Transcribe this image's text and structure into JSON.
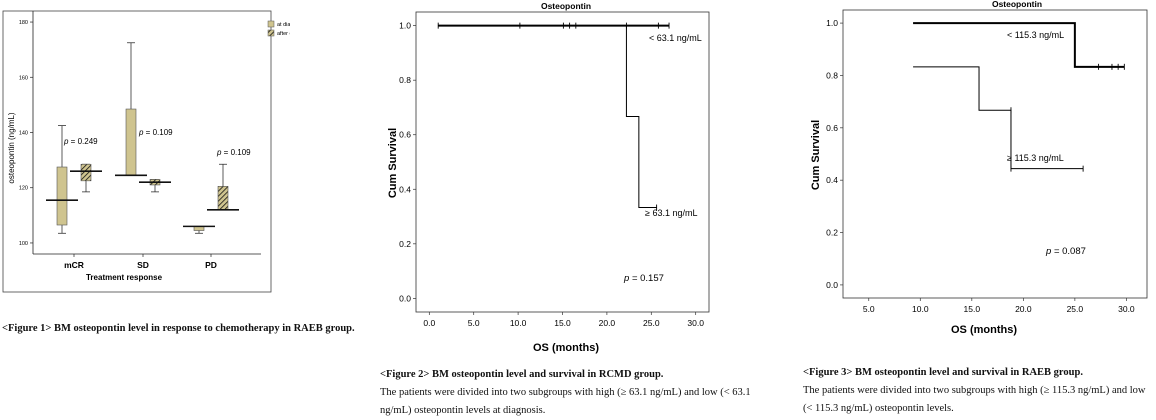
{
  "chart_data": [
    {
      "type": "box",
      "title": "",
      "xlabel": "Treatment response",
      "ylabel": "osteopontin (ng/mL)",
      "ylim": [
        96,
        184
      ],
      "yticks": [
        100,
        120,
        140,
        160,
        180
      ],
      "categories": [
        "mCR",
        "SD",
        "PD"
      ],
      "legend": {
        "placement": "top-right",
        "entries": [
          "at diagnosis",
          "after chemotherapy"
        ]
      },
      "series": [
        {
          "name": "at diagnosis",
          "color": "#cfc48f",
          "boxes": [
            {
              "min": 103.5,
              "q1": 106.5,
              "median": 115.5,
              "q3": 127.5,
              "max": 142.5
            },
            {
              "min": 124.5,
              "q1": 124.5,
              "median": 124.5,
              "q3": 148.5,
              "max": 172.5
            },
            {
              "min": 103.5,
              "q1": 104.5,
              "median": 106.0,
              "q3": 106.0,
              "max": 106.0
            }
          ]
        },
        {
          "name": "after chemotherapy",
          "color": "#cfc48f",
          "boxes": [
            {
              "min": 118.5,
              "q1": 122.5,
              "median": 126.0,
              "q3": 128.5,
              "max": 128.5
            },
            {
              "min": 118.5,
              "q1": 121.0,
              "median": 122.0,
              "q3": 123.0,
              "max": 123.0
            },
            {
              "min": 112.0,
              "q1": 112.0,
              "median": 112.0,
              "q3": 120.5,
              "max": 128.5
            }
          ]
        }
      ],
      "pvalues": [
        {
          "category": "mCR",
          "value": "= 0.249"
        },
        {
          "category": "SD",
          "value": "= 0.109"
        },
        {
          "category": "PD",
          "value": "= 0.109"
        }
      ]
    },
    {
      "type": "step",
      "title": "Osteopontin",
      "xlabel": "OS (months)",
      "ylabel": "Cum Survival",
      "xlim": [
        -1.5,
        31.5
      ],
      "ylim": [
        -0.05,
        1.05
      ],
      "xticks": [
        "0.0",
        "5.0",
        "10.0",
        "15.0",
        "20.0",
        "25.0",
        "30.0"
      ],
      "yticks": [
        "0.0",
        "0.2",
        "0.4",
        "0.6",
        "0.8",
        "1.0"
      ],
      "series": [
        {
          "name": "< 63.1 ng/mL",
          "line_width": 2,
          "steps": [
            [
              1.0,
              1.0
            ],
            [
              27.0,
              1.0
            ]
          ],
          "censored": [
            [
              1.0,
              1.0
            ],
            [
              10.2,
              1.0
            ],
            [
              15.1,
              1.0
            ],
            [
              15.8,
              1.0
            ],
            [
              16.5,
              1.0
            ],
            [
              22.2,
              1.0
            ],
            [
              25.8,
              1.0
            ],
            [
              27.0,
              1.0
            ]
          ]
        },
        {
          "name": "≥ 63.1 ng/mL",
          "line_width": 1,
          "steps": [
            [
              22.2,
              1.0
            ],
            [
              22.2,
              0.667
            ],
            [
              23.6,
              0.667
            ],
            [
              23.6,
              0.333
            ],
            [
              25.6,
              0.333
            ]
          ],
          "censored": [
            [
              25.6,
              0.333
            ]
          ]
        }
      ],
      "pvalue": "= 0.157"
    },
    {
      "type": "step",
      "title": "Osteopontin",
      "xlabel": "OS (months)",
      "ylabel": "Cum Survival",
      "xlim": [
        2.5,
        32.0
      ],
      "ylim": [
        -0.05,
        1.05
      ],
      "xticks": [
        "5.0",
        "10.0",
        "15.0",
        "20.0",
        "25.0",
        "30.0"
      ],
      "yticks": [
        "0.0",
        "0.2",
        "0.4",
        "0.6",
        "0.8",
        "1.0"
      ],
      "series": [
        {
          "name": "< 115.3 ng/mL",
          "line_width": 2,
          "steps": [
            [
              9.3,
              1.0
            ],
            [
              25.0,
              1.0
            ],
            [
              25.0,
              0.833
            ],
            [
              29.8,
              0.833
            ]
          ],
          "censored": [
            [
              27.3,
              0.833
            ],
            [
              28.6,
              0.833
            ],
            [
              29.2,
              0.833
            ],
            [
              29.8,
              0.833
            ]
          ]
        },
        {
          "name": "≥ 115.3 ng/mL",
          "line_width": 1,
          "steps": [
            [
              9.3,
              0.833
            ],
            [
              15.7,
              0.833
            ],
            [
              15.7,
              0.667
            ],
            [
              18.8,
              0.667
            ],
            [
              18.8,
              0.444
            ],
            [
              25.8,
              0.444
            ]
          ],
          "censored": [
            [
              18.8,
              0.667
            ],
            [
              18.8,
              0.444
            ],
            [
              25.8,
              0.444
            ]
          ]
        }
      ],
      "pvalue": "= 0.087"
    }
  ],
  "captions": [
    {
      "title": "<Figure 1> BM osteopontin level in response to chemotherapy in RAEB group.",
      "body": ""
    },
    {
      "title": "<Figure 2> BM osteopontin level and survival in RCMD group.",
      "body": "The patients were divided into two subgroups with high (≥ 63.1 ng/mL) and low (< 63.1 ng/mL) osteopontin levels at diagnosis."
    },
    {
      "title": "<Figure 3> BM osteopontin level and survival in RAEB group.",
      "body": "The patients were divided into two subgroups with high (≥ 115.3 ng/mL) and low (< 115.3 ng/mL) osteopontin levels."
    }
  ]
}
